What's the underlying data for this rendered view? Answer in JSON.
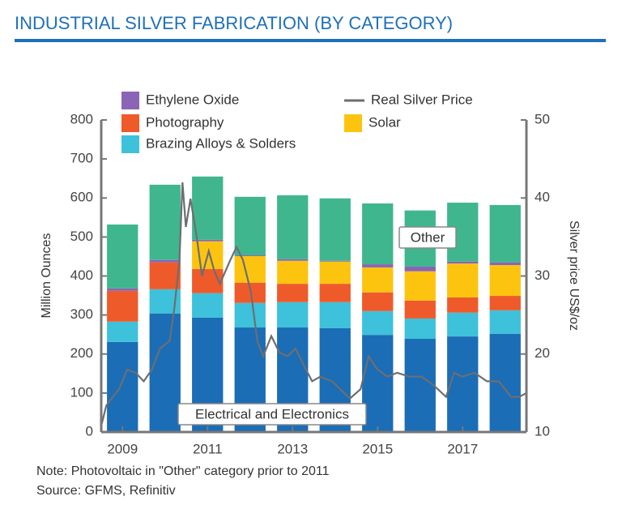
{
  "chart_data": {
    "type": "bar",
    "title": "INDUSTRIAL SILVER FABRICATION (BY CATEGORY)",
    "ylabel": "Million Ounces",
    "y2label": "Silver price US$/oz",
    "note": "Note: Photovoltaic in \"Other\" category prior to 2011",
    "source": "Source: GFMS, Refinitiv",
    "stacked": true,
    "x": [
      2009,
      2010,
      2011,
      2012,
      2013,
      2014,
      2015,
      2016,
      2017,
      2018
    ],
    "xlim": [
      2008.5,
      2018.5
    ],
    "xticks": [
      2009,
      2011,
      2013,
      2015,
      2017
    ],
    "ylim": [
      0,
      800
    ],
    "yticks": [
      0,
      100,
      200,
      300,
      400,
      500,
      600,
      700,
      800
    ],
    "y2lim": [
      10,
      50
    ],
    "y2ticks": [
      10,
      20,
      30,
      40,
      50
    ],
    "series": [
      {
        "name": "Electrical and Electronics",
        "color": "#1b6db6",
        "values": [
          231,
          304,
          293,
          268,
          268,
          266,
          249,
          239,
          245,
          252
        ]
      },
      {
        "name": "Brazing Alloys & Solders",
        "color": "#3ec1da",
        "values": [
          52,
          62,
          63,
          63,
          65,
          67,
          61,
          52,
          61,
          60
        ]
      },
      {
        "name": "Photography",
        "color": "#ef5a2b",
        "values": [
          79,
          69,
          62,
          52,
          47,
          47,
          48,
          46,
          39,
          37
        ]
      },
      {
        "name": "Solar",
        "color": "#fdc40f",
        "values": [
          0,
          0,
          71,
          68,
          59,
          57,
          64,
          75,
          87,
          79
        ]
      },
      {
        "name": "Ethylene Oxide",
        "color": "#8b64b6",
        "values": [
          6,
          6,
          4,
          2,
          4,
          2,
          8,
          12,
          5,
          7
        ]
      },
      {
        "name": "Other",
        "color": "#3fb68e",
        "values": [
          164,
          193,
          162,
          150,
          164,
          160,
          156,
          144,
          151,
          147
        ]
      }
    ],
    "line": {
      "name": "Real Silver Price",
      "color": "#6d6e71",
      "axis": "y2",
      "x": [
        2008.5,
        2008.62,
        2008.77,
        2008.92,
        2009.11,
        2009.31,
        2009.5,
        2009.69,
        2009.88,
        2010.11,
        2010.22,
        2010.34,
        2010.41,
        2010.49,
        2010.6,
        2010.74,
        2010.87,
        2011.03,
        2011.16,
        2011.29,
        2011.54,
        2011.68,
        2011.83,
        2012.02,
        2012.17,
        2012.31,
        2012.5,
        2012.69,
        2012.88,
        2013.07,
        2013.26,
        2013.46,
        2013.65,
        2013.93,
        2014.12,
        2014.35,
        2014.6,
        2014.79,
        2014.98,
        2015.23,
        2015.46,
        2015.75,
        2016.04,
        2016.32,
        2016.61,
        2016.8,
        2016.99,
        2017.28,
        2017.57,
        2017.85,
        2018.14,
        2018.33,
        2018.5
      ],
      "values": [
        10.8,
        13.4,
        14.5,
        15.5,
        18,
        17.6,
        16.5,
        18,
        20.7,
        21.7,
        25.9,
        32,
        42,
        36.3,
        39.9,
        35.2,
        30,
        33.2,
        30.6,
        29,
        32.1,
        33.7,
        32.1,
        28,
        21.7,
        19.7,
        22.3,
        20.2,
        19.7,
        20.7,
        18.6,
        16.5,
        17.1,
        16.5,
        15.5,
        14.3,
        15.5,
        19.7,
        18.1,
        17.1,
        17.6,
        17.1,
        17.1,
        16,
        14.5,
        17.6,
        17.1,
        17.6,
        16.5,
        16.5,
        14.5,
        14.5,
        15
      ]
    }
  }
}
